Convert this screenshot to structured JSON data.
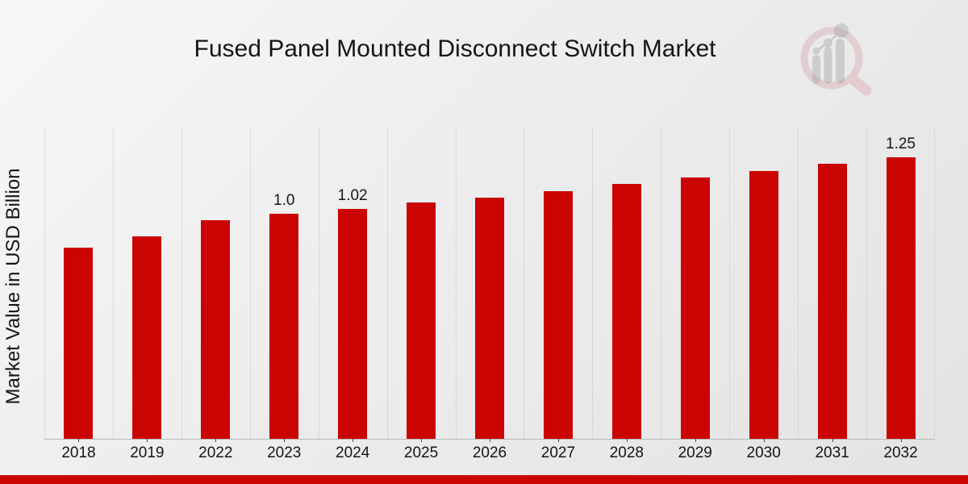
{
  "title": "Fused Panel Mounted Disconnect Switch Market",
  "y_axis_label": "Market Value in USD Billion",
  "chart_data": {
    "type": "bar",
    "title": "Fused Panel Mounted Disconnect Switch Market",
    "xlabel": "",
    "ylabel": "Market Value in USD Billion",
    "categories": [
      "2018",
      "2019",
      "2022",
      "2023",
      "2024",
      "2025",
      "2026",
      "2027",
      "2028",
      "2029",
      "2030",
      "2031",
      "2032"
    ],
    "values": [
      0.85,
      0.9,
      0.97,
      1.0,
      1.02,
      1.05,
      1.07,
      1.1,
      1.13,
      1.16,
      1.19,
      1.22,
      1.25
    ],
    "data_labels": {
      "2023": "1.0",
      "2024": "1.02",
      "2032": "1.25"
    },
    "ylim": [
      0,
      1.375
    ],
    "grid": "vertical-dotted",
    "legend_position": "none",
    "bar_color": "#ca0402"
  },
  "footer": {
    "accent_color": "#c90402"
  },
  "logo": {
    "name": "market-research-magnifier-logo",
    "ring_color": "#c96a72",
    "bars_color": "#9d9ea3"
  }
}
